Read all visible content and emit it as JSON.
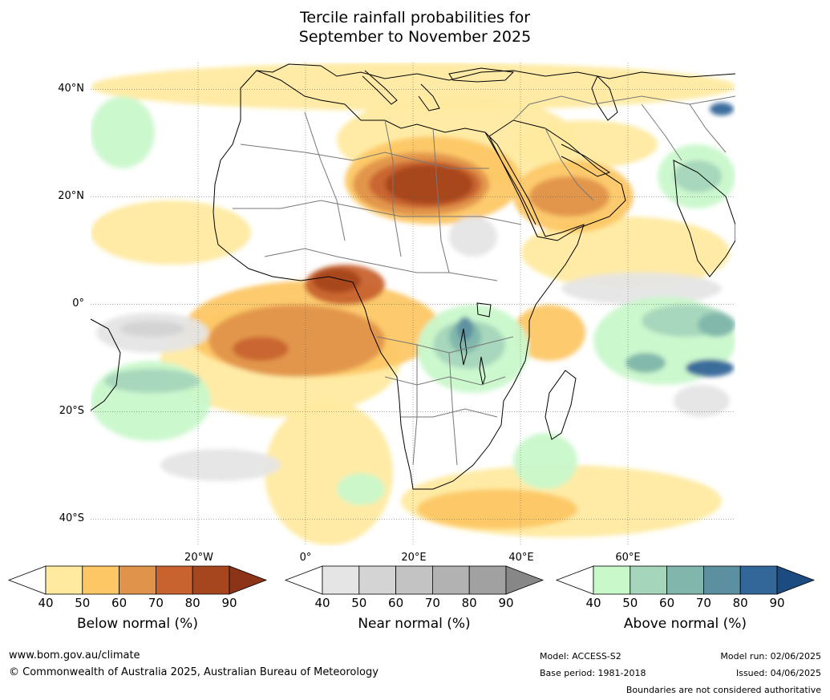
{
  "title": {
    "line1": "Tercile rainfall probabilities for",
    "line2": "September to November 2025"
  },
  "map": {
    "lat_labels": [
      "40°N",
      "20°N",
      "0°",
      "20°S",
      "40°S"
    ],
    "lat_values": [
      40,
      20,
      0,
      -20,
      -40
    ],
    "lon_labels": [
      "20°W",
      "0°",
      "20°E",
      "40°E",
      "60°E"
    ],
    "lon_values": [
      -20,
      0,
      20,
      40,
      60
    ],
    "extent": {
      "lon_min": -40,
      "lon_max": 80,
      "lat_min": -45,
      "lat_max": 45
    },
    "region": "Africa, Middle East and surrounding oceans",
    "features": [
      {
        "category": "below",
        "level": 80,
        "region": "Sudan / Chad / Libya border"
      },
      {
        "category": "below",
        "level": 80,
        "region": "Gulf of Guinea / Nigeria / Cameroon"
      },
      {
        "category": "below",
        "level": 70,
        "region": "South Atlantic west of Angola"
      },
      {
        "category": "below",
        "level": 70,
        "region": "Arabian Peninsula"
      },
      {
        "category": "below",
        "level": 60,
        "region": "Southern Ocean south of South Africa"
      },
      {
        "category": "above",
        "level": 70,
        "region": "Lake Victoria / Tanzania"
      },
      {
        "category": "above",
        "level": 80,
        "region": "Southern Indian Ocean"
      },
      {
        "category": "above",
        "level": 80,
        "region": "Western Himalaya"
      },
      {
        "category": "above",
        "level": 50,
        "region": "Western Arabian Sea"
      }
    ]
  },
  "colorbars": [
    {
      "id": "below",
      "title": "Below normal (%)",
      "low": "#ffffff",
      "colors": [
        "#ffeaa0",
        "#fdc765",
        "#e0934a",
        "#c8632f",
        "#a6461f"
      ],
      "high": "#8c3318",
      "ticks": [
        "40",
        "50",
        "60",
        "70",
        "80",
        "90"
      ]
    },
    {
      "id": "near",
      "title": "Near normal (%)",
      "low": "#ffffff",
      "colors": [
        "#e5e5e5",
        "#d4d4d4",
        "#c3c3c3",
        "#b2b2b2",
        "#a1a1a1"
      ],
      "high": "#878787",
      "ticks": [
        "40",
        "50",
        "60",
        "70",
        "80",
        "90"
      ]
    },
    {
      "id": "above",
      "title": "Above normal (%)",
      "low": "#ffffff",
      "colors": [
        "#c9f8cb",
        "#a5d6bc",
        "#80b6ab",
        "#5c8fa0",
        "#336699"
      ],
      "high": "#1b4b80",
      "ticks": [
        "40",
        "50",
        "60",
        "70",
        "80",
        "90"
      ]
    }
  ],
  "footer": {
    "url": "www.bom.gov.au/climate",
    "copyright": "© Commonwealth of Australia 2025, Australian Bureau of Meteorology",
    "model": "Model: ACCESS-S2",
    "base_period": "Base period: 1981-2018",
    "model_run": "Model run: 02/06/2025",
    "issued": "Issued: 04/06/2025",
    "disclaimer": "Boundaries are not considered authoritative"
  }
}
